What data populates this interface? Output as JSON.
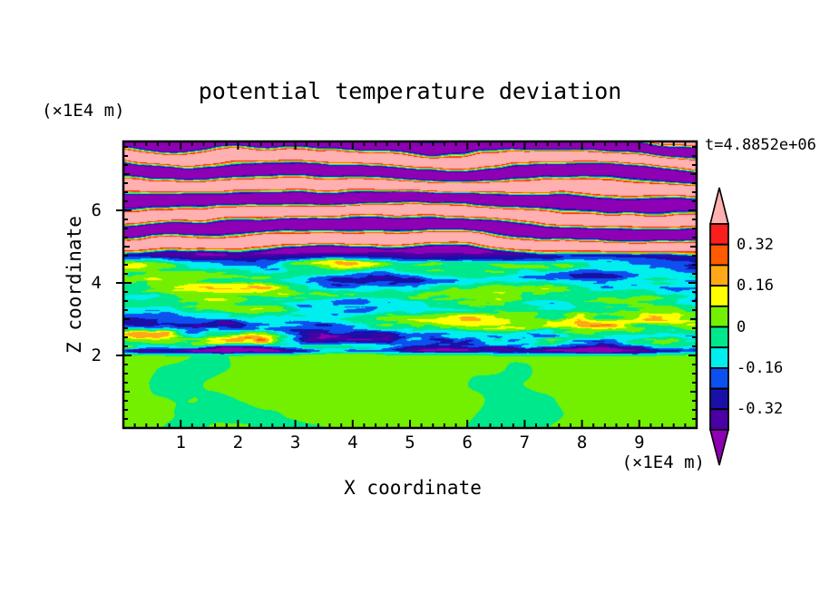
{
  "title": "potential temperature deviation",
  "time_label": "t=4.8852e+06",
  "x_axis": {
    "label": "X coordinate",
    "unit_label": "(×1E4 m)",
    "range": [
      0,
      10
    ],
    "major_ticks": [
      1,
      2,
      3,
      4,
      5,
      6,
      7,
      8,
      9
    ],
    "minor_step": 0.2
  },
  "y_axis": {
    "label": "Z coordinate",
    "unit_label": "(×1E4 m)",
    "range": [
      0,
      7.9
    ],
    "labeled_ticks": [
      2,
      4,
      6
    ],
    "integer_ticks": [
      1,
      2,
      3,
      4,
      5,
      6,
      7
    ],
    "minor_step": 0.25
  },
  "colorbar": {
    "orientation": "vertical",
    "position": "right",
    "value_min": -0.4,
    "value_max": 0.4,
    "tick_labels": [
      {
        "text": "0.32",
        "value": 0.32
      },
      {
        "text": "0.16",
        "value": 0.16
      },
      {
        "text": "0",
        "value": 0
      },
      {
        "text": "-0.16",
        "value": -0.16
      },
      {
        "text": "-0.32",
        "value": -0.32
      }
    ]
  },
  "chart_data": {
    "type": "heatmap",
    "subtype": "filled-contour-field",
    "title": "potential temperature deviation",
    "xlabel": "X coordinate (×1E4 m)",
    "ylabel": "Z coordinate (×1E4 m)",
    "time_annotation": "t=4.8852e+06",
    "xlim": [
      0,
      10
    ],
    "ylim": [
      0,
      7.9
    ],
    "contour_interval": 0.08,
    "contour_levels": [
      -0.4,
      -0.32,
      -0.24,
      -0.16,
      -0.08,
      0,
      0.08,
      0.16,
      0.24,
      0.32,
      0.4
    ],
    "palette": [
      "#8E00B4",
      "#4A00A4",
      "#1A10A8",
      "#0D50F0",
      "#00EEEE",
      "#00E88C",
      "#72F000",
      "#FFFF00",
      "#FFA818",
      "#FF5A00",
      "#FA1E1E",
      "#FFB0B0"
    ],
    "palette_meaning": "bin colors from values below -0.4 (purple, bottom arrow of colorbar) up to values above +0.4 (pink, top arrow of colorbar)",
    "grid": false,
    "legend_position": "right-colorbar-with-end-arrows",
    "regions": [
      {
        "z_range": [
          0,
          2
        ],
        "description": "shallow convective layer: weak deviations, large smooth blobs alternating between -0.08..0 (spring green) and 0..0.08 (yellow-green)"
      },
      {
        "z_range": [
          2,
          2.4
        ],
        "description": "sharp capping interface: thin intense streaks spanning nearly the full range, including navy/indigo line segments near z=2.1 and red/pink specks"
      },
      {
        "z_range": [
          2.4,
          4.8
        ],
        "description": "turbulent layer: cyan/green background near -0.1 with long horizontal yellow-orange-red streaks up to +0.4 and blue/dark-blue patches down to -0.35"
      },
      {
        "z_range": [
          4.8,
          7.9
        ],
        "description": "stably stratified wave layers: alternating nearly horizontal saturated bands above +0.4 (pink) and below -0.4 (purple), wavelength about 0.8×1E4 m, separated by thin rainbow transition lines that tilt and merge"
      }
    ]
  }
}
